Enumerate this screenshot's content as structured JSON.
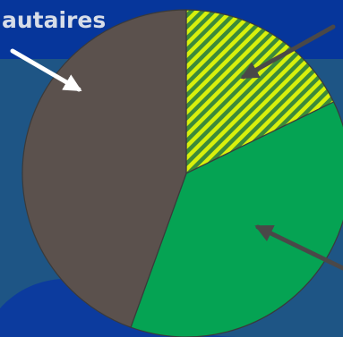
{
  "header": {
    "partial_title": "autaires"
  },
  "chart_data": {
    "type": "pie",
    "title": "",
    "slices": [
      {
        "label": "",
        "value": 17.8,
        "color": "#d8f00c",
        "pattern": "diagonal-stripes"
      },
      {
        "label": "",
        "value": 37.7,
        "color": "#05a353"
      },
      {
        "label": "",
        "value": 44.5,
        "color": "#5b514d"
      }
    ],
    "start_angle_deg": 0,
    "direction": "clockwise",
    "legend": "none",
    "annotations": [
      {
        "type": "arrow",
        "color": "#ffffff",
        "points_to_slice": 2
      },
      {
        "type": "arrow",
        "color": "#4a4848",
        "points_to_slice": 0
      },
      {
        "type": "arrow",
        "color": "#4a4848",
        "points_to_slice": 1
      }
    ]
  },
  "colors": {
    "background_top": "#06369b",
    "background_main": "#1e5585",
    "swirl": "#0c3b9e",
    "stripe_dark": "#3c8a3a",
    "slice_outline": "#3a3a3a"
  }
}
